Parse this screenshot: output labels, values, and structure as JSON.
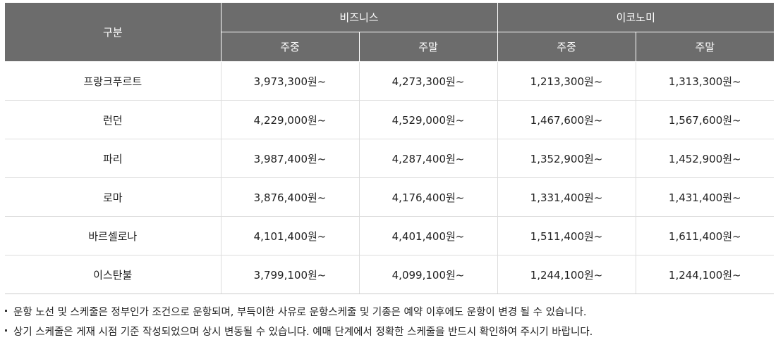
{
  "table": {
    "header": {
      "category": "구분",
      "business": "비즈니스",
      "economy": "이코노미",
      "weekday": "주중",
      "weekend": "주말"
    },
    "rows": [
      {
        "city": "프랑크푸르트",
        "business_weekday": "3,973,300원~",
        "business_weekend": "4,273,300원~",
        "economy_weekday": "1,213,300원~",
        "economy_weekend": "1,313,300원~"
      },
      {
        "city": "런던",
        "business_weekday": "4,229,000원~",
        "business_weekend": "4,529,000원~",
        "economy_weekday": "1,467,600원~",
        "economy_weekend": "1,567,600원~"
      },
      {
        "city": "파리",
        "business_weekday": "3,987,400원~",
        "business_weekend": "4,287,400원~",
        "economy_weekday": "1,352,900원~",
        "economy_weekend": "1,452,900원~"
      },
      {
        "city": "로마",
        "business_weekday": "3,876,400원~",
        "business_weekend": "4,176,400원~",
        "economy_weekday": "1,331,400원~",
        "economy_weekend": "1,431,400원~"
      },
      {
        "city": "바르셀로나",
        "business_weekday": "4,101,400원~",
        "business_weekend": "4,401,400원~",
        "economy_weekday": "1,511,400원~",
        "economy_weekend": "1,611,400원~"
      },
      {
        "city": "이스탄불",
        "business_weekday": "3,799,100원~",
        "business_weekend": "4,099,100원~",
        "economy_weekday": "1,244,100원~",
        "economy_weekend": "1,244,100원~"
      }
    ]
  },
  "notes": [
    "운항 노선 및 스케줄은 정부인가 조건으로 운항되며, 부득이한 사유로 운항스케줄 및 기종은 예약 이후에도 운항이 변경 될 수 있습니다.",
    "상기 스케줄은 게재 시점 기준 작성되었으며 상시 변동될 수 있습니다. 예매 단계에서 정확한 스케줄을 반드시 확인하여 주시기 바랍니다."
  ]
}
